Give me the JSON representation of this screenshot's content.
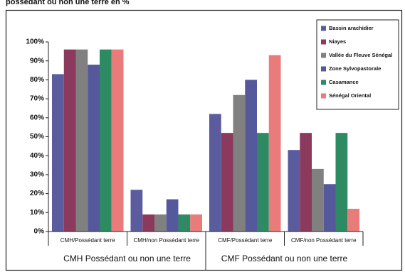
{
  "chart_data": {
    "type": "bar",
    "title": "possédant ou non une terre en %",
    "categories": [
      "CMH/Possédant terre",
      "CMH/non Possédant terre",
      "CMF/Possédant terre",
      "CMF/non Possédant terre"
    ],
    "group_labels": [
      "CMH Possédant ou non une terre",
      "CMF Possédant ou non une terre"
    ],
    "series": [
      {
        "name": "Bassin arachidier",
        "color": "#5a5c9e",
        "values": [
          83,
          22,
          62,
          43
        ]
      },
      {
        "name": "Niayes",
        "color": "#8b3a5e",
        "values": [
          96,
          9,
          52,
          52
        ]
      },
      {
        "name": "Vallée du Fleuve Sénégal",
        "color": "#808080",
        "values": [
          96,
          9,
          72,
          33
        ]
      },
      {
        "name": "Zone Sylvopastorale",
        "color": "#55599c",
        "values": [
          88,
          17,
          80,
          25
        ]
      },
      {
        "name": "Casamance",
        "color": "#2e8a62",
        "values": [
          96,
          9,
          52,
          52
        ]
      },
      {
        "name": "Sénégal Oriental",
        "color": "#e97b7b",
        "values": [
          96,
          9,
          93,
          12
        ]
      }
    ],
    "ylim": [
      0,
      100
    ],
    "yticks": [
      {
        "value": 0,
        "label": "0%"
      },
      {
        "value": 10,
        "label": "10%"
      },
      {
        "value": 20,
        "label": "20%"
      },
      {
        "value": 30,
        "label": "30%"
      },
      {
        "value": 40,
        "label": "40%"
      },
      {
        "value": 50,
        "label": "50%"
      },
      {
        "value": 60,
        "label": "60%"
      },
      {
        "value": 70,
        "label": "70%"
      },
      {
        "value": 80,
        "label": "80%"
      },
      {
        "value": 90,
        "label": "90%"
      },
      {
        "value": 100,
        "label": "100%"
      }
    ],
    "legend": "top-right"
  }
}
